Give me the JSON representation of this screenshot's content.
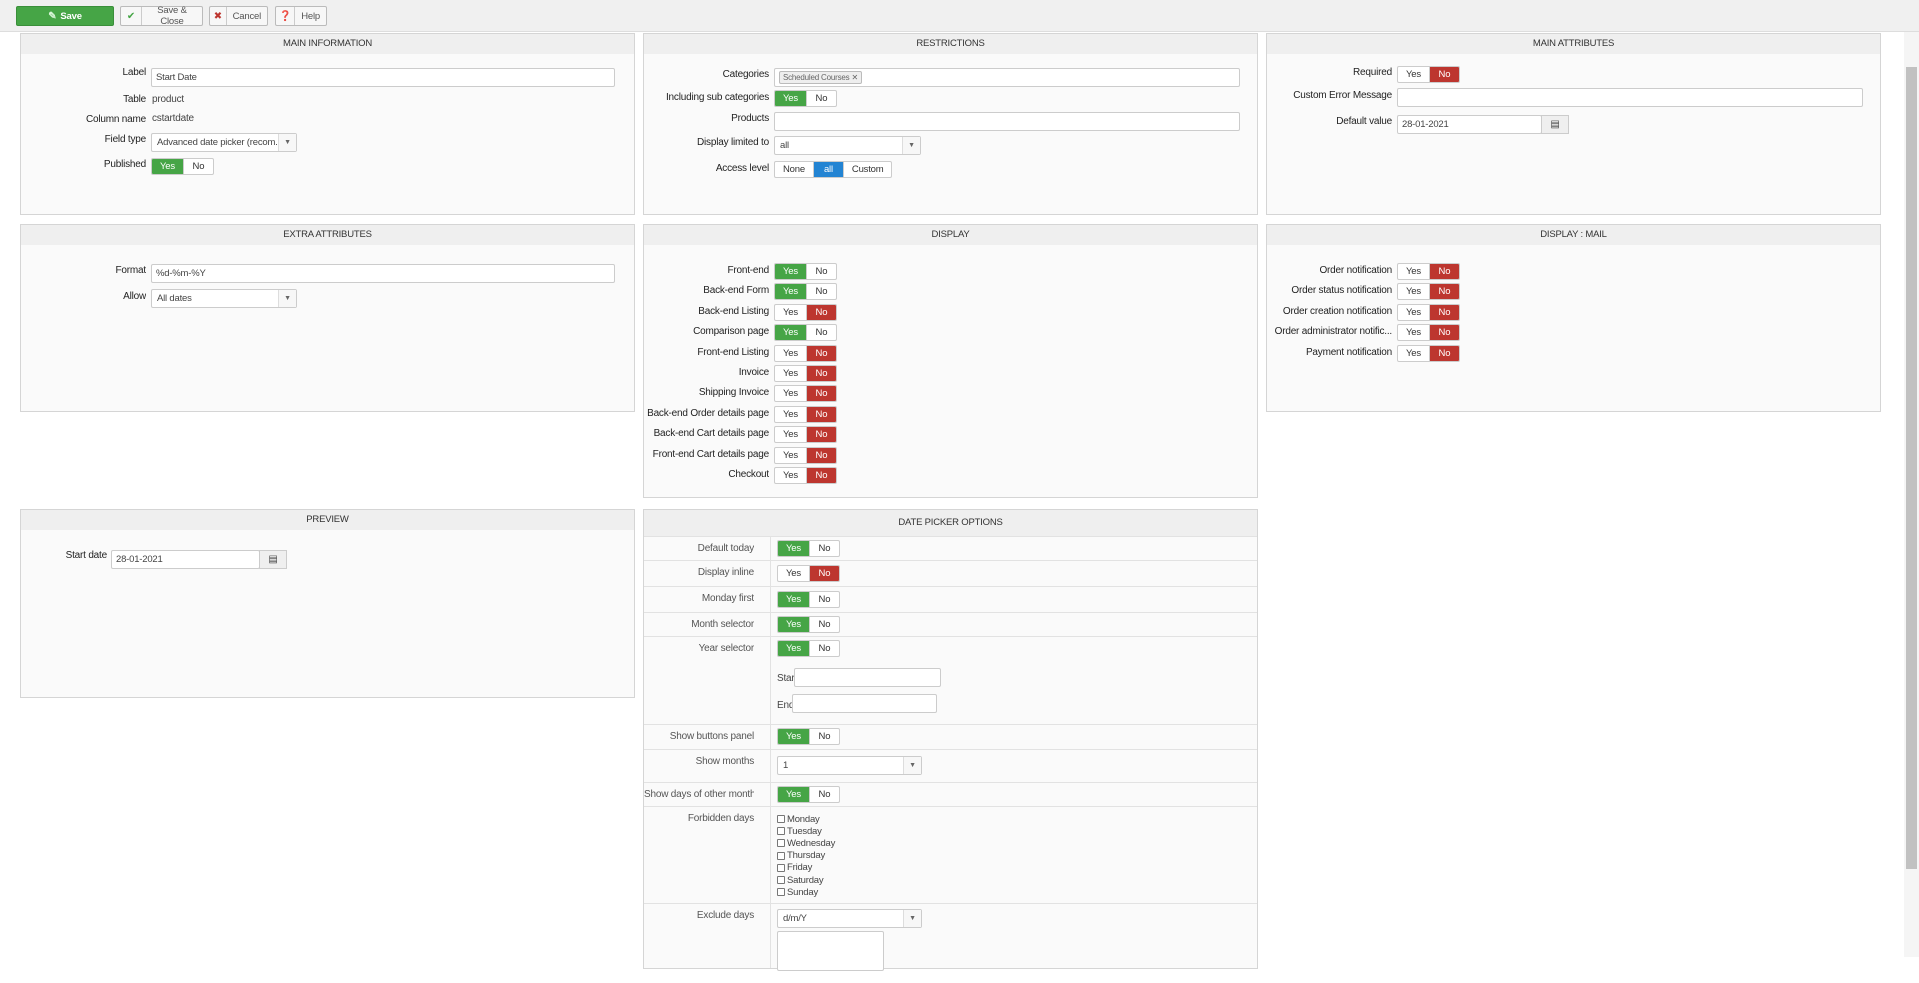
{
  "colors": {
    "yes": "#46a546",
    "no": "#bd362f",
    "selected": "#2384d3"
  },
  "toolbar": {
    "save": "Save",
    "save_close": "Save & Close",
    "cancel": "Cancel",
    "help": "Help"
  },
  "main_information": {
    "title": "MAIN INFORMATION",
    "label_label": "Label",
    "label_value": "Start Date",
    "table_label": "Table",
    "table_value": "product",
    "column_label": "Column name",
    "column_value": "cstartdate",
    "field_type_label": "Field type",
    "field_type_value": "Advanced date picker (recom...",
    "published_label": "Published",
    "published": {
      "options": [
        "Yes",
        "No"
      ],
      "selected": "Yes"
    }
  },
  "restrictions": {
    "title": "RESTRICTIONS",
    "categories_label": "Categories",
    "category_tag": "Scheduled Courses ✕",
    "sub_label": "Including sub categories",
    "sub": {
      "options": [
        "Yes",
        "No"
      ],
      "selected": "Yes"
    },
    "products_label": "Products",
    "products_value": "",
    "display_limited_label": "Display limited to",
    "display_limited_value": "all",
    "access_label": "Access level",
    "access": {
      "options": [
        "None",
        "all",
        "Custom"
      ],
      "selected": "all"
    }
  },
  "main_attributes": {
    "title": "MAIN ATTRIBUTES",
    "required_label": "Required",
    "required": {
      "options": [
        "Yes",
        "No"
      ],
      "selected": "No"
    },
    "error_label": "Custom Error Message",
    "error_value": "",
    "default_label": "Default value",
    "default_value": "28-01-2021"
  },
  "extra_attributes": {
    "title": "EXTRA ATTRIBUTES",
    "format_label": "Format",
    "format_value": "%d-%m-%Y",
    "allow_label": "Allow",
    "allow_value": "All dates"
  },
  "display": {
    "title": "DISPLAY",
    "rows": [
      {
        "label": "Front-end",
        "toggle": {
          "options": [
            "Yes",
            "No"
          ],
          "selected": "Yes"
        }
      },
      {
        "label": "Back-end Form",
        "toggle": {
          "options": [
            "Yes",
            "No"
          ],
          "selected": "Yes"
        }
      },
      {
        "label": "Back-end Listing",
        "toggle": {
          "options": [
            "Yes",
            "No"
          ],
          "selected": "No"
        }
      },
      {
        "label": "Comparison page",
        "toggle": {
          "options": [
            "Yes",
            "No"
          ],
          "selected": "Yes"
        }
      },
      {
        "label": "Front-end Listing",
        "toggle": {
          "options": [
            "Yes",
            "No"
          ],
          "selected": "No"
        }
      },
      {
        "label": "Invoice",
        "toggle": {
          "options": [
            "Yes",
            "No"
          ],
          "selected": "No"
        }
      },
      {
        "label": "Shipping Invoice",
        "toggle": {
          "options": [
            "Yes",
            "No"
          ],
          "selected": "No"
        }
      },
      {
        "label": "Back-end Order details page",
        "toggle": {
          "options": [
            "Yes",
            "No"
          ],
          "selected": "No"
        }
      },
      {
        "label": "Back-end Cart details page",
        "toggle": {
          "options": [
            "Yes",
            "No"
          ],
          "selected": "No"
        }
      },
      {
        "label": "Front-end Cart details page",
        "toggle": {
          "options": [
            "Yes",
            "No"
          ],
          "selected": "No"
        }
      },
      {
        "label": "Checkout",
        "toggle": {
          "options": [
            "Yes",
            "No"
          ],
          "selected": "No"
        }
      }
    ]
  },
  "display_mail": {
    "title": "DISPLAY : MAIL",
    "rows": [
      {
        "label": "Order notification",
        "toggle": {
          "options": [
            "Yes",
            "No"
          ],
          "selected": "No"
        }
      },
      {
        "label": "Order status notification",
        "toggle": {
          "options": [
            "Yes",
            "No"
          ],
          "selected": "No"
        }
      },
      {
        "label": "Order creation notification",
        "toggle": {
          "options": [
            "Yes",
            "No"
          ],
          "selected": "No"
        }
      },
      {
        "label": "Order administrator notific...",
        "toggle": {
          "options": [
            "Yes",
            "No"
          ],
          "selected": "No"
        }
      },
      {
        "label": "Payment notification",
        "toggle": {
          "options": [
            "Yes",
            "No"
          ],
          "selected": "No"
        }
      }
    ]
  },
  "preview": {
    "title": "PREVIEW",
    "start_label": "Start date",
    "start_value": "28-01-2021"
  },
  "date_picker": {
    "title": "DATE PICKER OPTIONS",
    "default_today_label": "Default today",
    "default_today": {
      "options": [
        "Yes",
        "No"
      ],
      "selected": "Yes"
    },
    "display_inline_label": "Display inline",
    "display_inline": {
      "options": [
        "Yes",
        "No"
      ],
      "selected": "No"
    },
    "monday_first_label": "Monday first",
    "monday_first": {
      "options": [
        "Yes",
        "No"
      ],
      "selected": "Yes"
    },
    "month_selector_label": "Month selector",
    "month_selector": {
      "options": [
        "Yes",
        "No"
      ],
      "selected": "Yes"
    },
    "year_selector_label": "Year selector",
    "year_selector": {
      "options": [
        "Yes",
        "No"
      ],
      "selected": "Yes"
    },
    "start_label": "Start",
    "start_value": "",
    "end_label": "End",
    "end_value": "",
    "buttons_panel_label": "Show buttons panel",
    "buttons_panel": {
      "options": [
        "Yes",
        "No"
      ],
      "selected": "Yes"
    },
    "show_months_label": "Show months",
    "show_months_value": "1",
    "other_months_label": "Show days of other months",
    "other_months": {
      "options": [
        "Yes",
        "No"
      ],
      "selected": "Yes"
    },
    "forbidden_label": "Forbidden days",
    "forbidden_days": [
      {
        "day": "Monday",
        "checked": false
      },
      {
        "day": "Tuesday",
        "checked": false
      },
      {
        "day": "Wednesday",
        "checked": false
      },
      {
        "day": "Thursday",
        "checked": false
      },
      {
        "day": "Friday",
        "checked": false
      },
      {
        "day": "Saturday",
        "checked": false
      },
      {
        "day": "Sunday",
        "checked": false
      }
    ],
    "exclude_label": "Exclude days",
    "exclude_format": "d/m/Y",
    "exclude_value": ""
  }
}
